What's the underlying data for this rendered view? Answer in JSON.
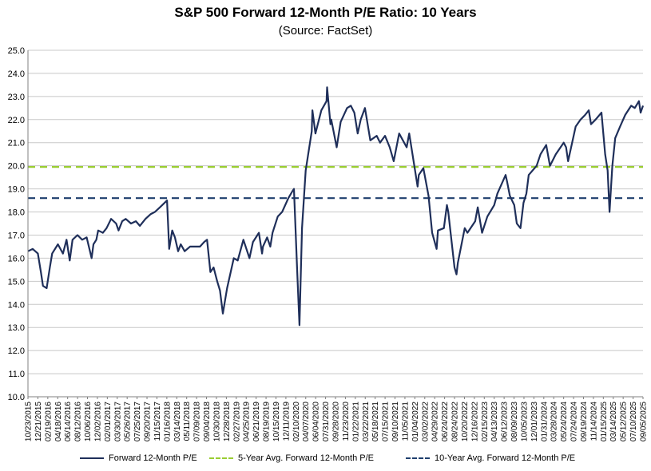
{
  "header": {
    "title": "S&P 500 Forward 12-Month P/E Ratio: 10 Years",
    "subtitle": "(Source: FactSet)"
  },
  "colors": {
    "series": "#1f2f5a",
    "avg5": "#9acd32",
    "avg10": "#1f3f6e",
    "grid": "#c8c8c8",
    "axis": "#808080"
  },
  "chart_data": {
    "type": "line",
    "title": "S&P 500 Forward 12-Month P/E Ratio: 10 Years",
    "subtitle": "(Source: FactSet)",
    "xlabel": "",
    "ylabel": "",
    "ylim": [
      10.0,
      25.0
    ],
    "y_ticks": [
      "10.0",
      "11.0",
      "12.0",
      "13.0",
      "14.0",
      "15.0",
      "16.0",
      "17.0",
      "18.0",
      "19.0",
      "20.0",
      "21.0",
      "22.0",
      "23.0",
      "24.0",
      "25.0"
    ],
    "x_ticks": [
      "10/23/2015",
      "12/21/2015",
      "02/19/2016",
      "04/18/2016",
      "06/14/2016",
      "08/12/2016",
      "10/06/2016",
      "12/02/2016",
      "02/01/2017",
      "03/30/2017",
      "05/26/2017",
      "07/25/2017",
      "09/20/2017",
      "11/15/2017",
      "01/16/2018",
      "03/14/2018",
      "05/11/2018",
      "07/09/2018",
      "09/04/2018",
      "10/30/2018",
      "12/28/2018",
      "02/27/2019",
      "04/25/2019",
      "06/21/2019",
      "08/19/2019",
      "10/15/2019",
      "12/11/2019",
      "02/10/2020",
      "04/07/2020",
      "06/04/2020",
      "07/31/2020",
      "09/28/2020",
      "11/23/2020",
      "01/22/2021",
      "03/22/2021",
      "05/18/2021",
      "07/15/2021",
      "09/10/2021",
      "11/05/2021",
      "01/04/2022",
      "03/02/2022",
      "04/29/2022",
      "06/24/2022",
      "08/24/2022",
      "10/20/2022",
      "12/16/2022",
      "02/15/2023",
      "04/13/2023",
      "06/12/2023",
      "08/09/2023",
      "10/05/2023",
      "12/01/2023",
      "01/31/2024",
      "03/28/2024",
      "05/24/2024",
      "07/24/2024",
      "09/19/2024",
      "11/14/2024",
      "01/15/2025",
      "03/14/2025",
      "05/12/2025",
      "07/10/2025",
      "09/05/2025"
    ],
    "grid": true,
    "legend_position": "bottom",
    "reference_lines": [
      {
        "name": "5-Year Avg. Forward 12-Month P/E",
        "value": 19.95,
        "style": "dashed",
        "color": "#9acd32"
      },
      {
        "name": "10-Year Avg. Forward 12-Month P/E",
        "value": 18.6,
        "style": "dashed",
        "color": "#1f3f6e"
      }
    ],
    "series": [
      {
        "name": "Forward 12-Month P/E",
        "points": [
          [
            "2015-10-23",
            16.3
          ],
          [
            "2015-11-20",
            16.4
          ],
          [
            "2015-12-21",
            16.2
          ],
          [
            "2016-01-08",
            15.4
          ],
          [
            "2016-01-20",
            14.8
          ],
          [
            "2016-02-11",
            14.7
          ],
          [
            "2016-03-01",
            15.6
          ],
          [
            "2016-03-15",
            16.2
          ],
          [
            "2016-04-18",
            16.6
          ],
          [
            "2016-05-18",
            16.2
          ],
          [
            "2016-06-08",
            16.8
          ],
          [
            "2016-06-27",
            15.9
          ],
          [
            "2016-07-14",
            16.8
          ],
          [
            "2016-08-12",
            17.0
          ],
          [
            "2016-09-09",
            16.8
          ],
          [
            "2016-10-06",
            16.9
          ],
          [
            "2016-11-04",
            16.0
          ],
          [
            "2016-11-15",
            16.6
          ],
          [
            "2016-12-02",
            16.8
          ],
          [
            "2016-12-13",
            17.2
          ],
          [
            "2017-01-10",
            17.1
          ],
          [
            "2017-02-01",
            17.3
          ],
          [
            "2017-02-28",
            17.7
          ],
          [
            "2017-03-30",
            17.5
          ],
          [
            "2017-04-13",
            17.2
          ],
          [
            "2017-05-05",
            17.6
          ],
          [
            "2017-05-26",
            17.7
          ],
          [
            "2017-06-26",
            17.5
          ],
          [
            "2017-07-25",
            17.6
          ],
          [
            "2017-08-18",
            17.4
          ],
          [
            "2017-09-20",
            17.7
          ],
          [
            "2017-10-20",
            17.9
          ],
          [
            "2017-11-15",
            18.0
          ],
          [
            "2017-12-15",
            18.2
          ],
          [
            "2018-01-26",
            18.5
          ],
          [
            "2018-02-08",
            16.4
          ],
          [
            "2018-02-26",
            17.2
          ],
          [
            "2018-03-14",
            16.9
          ],
          [
            "2018-04-02",
            16.3
          ],
          [
            "2018-04-18",
            16.6
          ],
          [
            "2018-05-11",
            16.3
          ],
          [
            "2018-06-12",
            16.5
          ],
          [
            "2018-07-09",
            16.5
          ],
          [
            "2018-08-10",
            16.5
          ],
          [
            "2018-09-04",
            16.7
          ],
          [
            "2018-09-21",
            16.8
          ],
          [
            "2018-10-11",
            15.4
          ],
          [
            "2018-10-30",
            15.6
          ],
          [
            "2018-11-20",
            15.0
          ],
          [
            "2018-12-07",
            14.6
          ],
          [
            "2018-12-24",
            13.6
          ],
          [
            "2019-01-18",
            14.7
          ],
          [
            "2019-02-27",
            16.0
          ],
          [
            "2019-03-22",
            15.9
          ],
          [
            "2019-04-25",
            16.8
          ],
          [
            "2019-05-31",
            16.0
          ],
          [
            "2019-06-21",
            16.7
          ],
          [
            "2019-07-26",
            17.1
          ],
          [
            "2019-08-14",
            16.2
          ],
          [
            "2019-08-19",
            16.5
          ],
          [
            "2019-09-13",
            16.9
          ],
          [
            "2019-10-02",
            16.5
          ],
          [
            "2019-10-15",
            17.1
          ],
          [
            "2019-11-15",
            17.8
          ],
          [
            "2019-12-11",
            18.0
          ],
          [
            "2020-01-17",
            18.6
          ],
          [
            "2020-02-10",
            18.9
          ],
          [
            "2020-02-19",
            19.0
          ],
          [
            "2020-03-09",
            15.5
          ],
          [
            "2020-03-23",
            13.1
          ],
          [
            "2020-04-07",
            17.3
          ],
          [
            "2020-04-29",
            19.8
          ],
          [
            "2020-06-04",
            21.5
          ],
          [
            "2020-06-08",
            22.4
          ],
          [
            "2020-06-26",
            21.4
          ],
          [
            "2020-07-31",
            22.4
          ],
          [
            "2020-08-31",
            22.8
          ],
          [
            "2020-09-03",
            23.4
          ],
          [
            "2020-09-23",
            21.8
          ],
          [
            "2020-09-28",
            22.0
          ],
          [
            "2020-10-30",
            20.8
          ],
          [
            "2020-11-23",
            21.9
          ],
          [
            "2020-12-31",
            22.5
          ],
          [
            "2021-01-22",
            22.6
          ],
          [
            "2021-02-12",
            22.3
          ],
          [
            "2021-03-04",
            21.4
          ],
          [
            "2021-03-22",
            22.0
          ],
          [
            "2021-04-16",
            22.5
          ],
          [
            "2021-05-18",
            21.1
          ],
          [
            "2021-06-25",
            21.3
          ],
          [
            "2021-07-15",
            21.0
          ],
          [
            "2021-08-13",
            21.3
          ],
          [
            "2021-09-10",
            20.8
          ],
          [
            "2021-10-04",
            20.2
          ],
          [
            "2021-11-05",
            21.4
          ],
          [
            "2021-12-20",
            20.8
          ],
          [
            "2022-01-04",
            21.4
          ],
          [
            "2022-02-23",
            19.1
          ],
          [
            "2022-03-02",
            19.6
          ],
          [
            "2022-03-29",
            19.9
          ],
          [
            "2022-04-29",
            18.7
          ],
          [
            "2022-05-20",
            17.1
          ],
          [
            "2022-06-16",
            16.4
          ],
          [
            "2022-06-24",
            17.2
          ],
          [
            "2022-07-29",
            17.3
          ],
          [
            "2022-08-16",
            18.3
          ],
          [
            "2022-08-24",
            18.0
          ],
          [
            "2022-09-30",
            15.6
          ],
          [
            "2022-10-12",
            15.3
          ],
          [
            "2022-10-20",
            15.8
          ],
          [
            "2022-11-30",
            17.3
          ],
          [
            "2022-12-16",
            17.1
          ],
          [
            "2023-01-31",
            17.6
          ],
          [
            "2023-02-15",
            18.2
          ],
          [
            "2023-03-13",
            17.1
          ],
          [
            "2023-04-13",
            17.8
          ],
          [
            "2023-05-24",
            18.3
          ],
          [
            "2023-06-12",
            18.8
          ],
          [
            "2023-07-31",
            19.6
          ],
          [
            "2023-08-09",
            19.3
          ],
          [
            "2023-08-25",
            18.7
          ],
          [
            "2023-09-20",
            18.3
          ],
          [
            "2023-10-05",
            17.5
          ],
          [
            "2023-10-27",
            17.3
          ],
          [
            "2023-11-14",
            18.4
          ],
          [
            "2023-12-01",
            18.8
          ],
          [
            "2023-12-15",
            19.6
          ],
          [
            "2024-01-31",
            20.0
          ],
          [
            "2024-02-23",
            20.5
          ],
          [
            "2024-03-28",
            20.9
          ],
          [
            "2024-04-19",
            20.0
          ],
          [
            "2024-05-24",
            20.5
          ],
          [
            "2024-07-10",
            21.0
          ],
          [
            "2024-07-24",
            20.8
          ],
          [
            "2024-08-05",
            20.2
          ],
          [
            "2024-09-19",
            21.7
          ],
          [
            "2024-10-18",
            22.0
          ],
          [
            "2024-11-14",
            22.2
          ],
          [
            "2024-12-06",
            22.4
          ],
          [
            "2024-12-19",
            21.8
          ],
          [
            "2025-01-15",
            22.0
          ],
          [
            "2025-02-19",
            22.3
          ],
          [
            "2025-03-13",
            20.5
          ],
          [
            "2025-03-28",
            19.8
          ],
          [
            "2025-04-08",
            18.0
          ],
          [
            "2025-04-25",
            20.0
          ],
          [
            "2025-05-12",
            21.2
          ],
          [
            "2025-06-10",
            21.7
          ],
          [
            "2025-07-10",
            22.2
          ],
          [
            "2025-08-15",
            22.6
          ],
          [
            "2025-09-05",
            22.5
          ],
          [
            "2025-09-30",
            22.8
          ],
          [
            "2025-10-10",
            22.3
          ],
          [
            "2025-10-24",
            22.6
          ]
        ]
      }
    ],
    "legend": [
      {
        "label": "Forward 12-Month P/E",
        "style": "solid",
        "color": "#1f2f5a"
      },
      {
        "label": "5-Year Avg. Forward 12-Month P/E",
        "style": "dashed",
        "color": "#9acd32"
      },
      {
        "label": "10-Year Avg. Forward 12-Month P/E",
        "style": "dashed",
        "color": "#1f3f6e"
      }
    ]
  }
}
